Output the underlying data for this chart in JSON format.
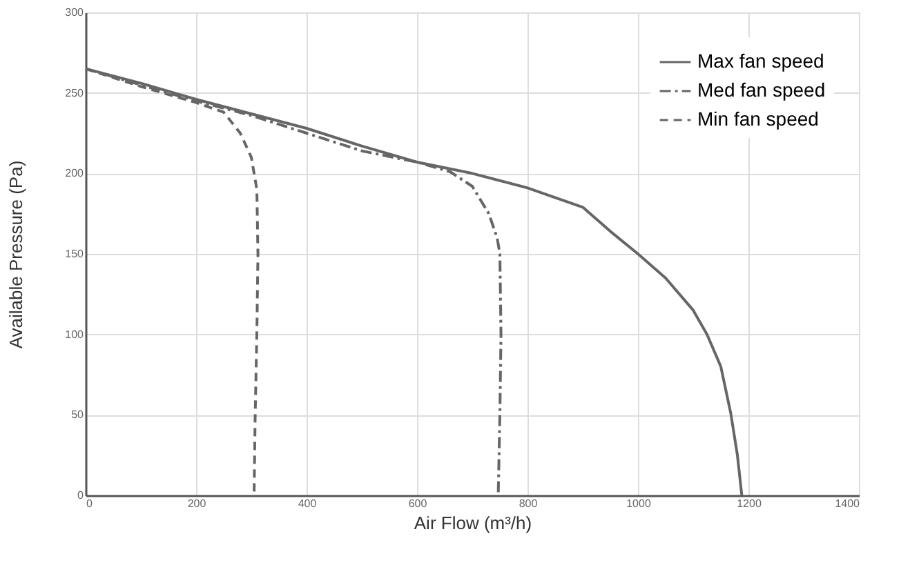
{
  "chart_data": {
    "type": "line",
    "xlabel": "Air Flow (m³/h)",
    "ylabel": "Available Pressure (Pa)",
    "xlim": [
      0,
      1400
    ],
    "xticks": [
      0,
      200,
      400,
      600,
      800,
      1000,
      1200,
      1400
    ],
    "ylim": [
      0,
      300
    ],
    "yticks": [
      0,
      50,
      100,
      150,
      200,
      250,
      300
    ],
    "grid": true,
    "legend": "top right",
    "marker": "none",
    "series": [
      {
        "name": "Max fan speed",
        "color": "#666666",
        "line_style": "solid",
        "x": [
          0,
          100,
          200,
          300,
          400,
          500,
          600,
          700,
          800,
          900,
          950,
          1000,
          1050,
          1100,
          1125,
          1150,
          1168,
          1180,
          1188
        ],
        "values": [
          265,
          256,
          246,
          237,
          228,
          217,
          207,
          200,
          191,
          179,
          164,
          150,
          135,
          115,
          100,
          80,
          51,
          25,
          0
        ]
      },
      {
        "name": "Med fan speed",
        "color": "#666666",
        "line_style": "dashdot",
        "x": [
          0,
          100,
          200,
          300,
          400,
          500,
          600,
          660,
          700,
          730,
          745,
          750,
          752,
          750,
          747
        ],
        "values": [
          265,
          255,
          245,
          236,
          225,
          214,
          207,
          201,
          192,
          175,
          160,
          150,
          100,
          50,
          0
        ]
      },
      {
        "name": "Min fan speed",
        "color": "#666666",
        "line_style": "dashed",
        "x": [
          0,
          100,
          200,
          250,
          280,
          300,
          310,
          312,
          310,
          307,
          305
        ],
        "values": [
          265,
          254,
          244,
          238,
          225,
          210,
          190,
          150,
          100,
          50,
          0
        ]
      }
    ]
  }
}
